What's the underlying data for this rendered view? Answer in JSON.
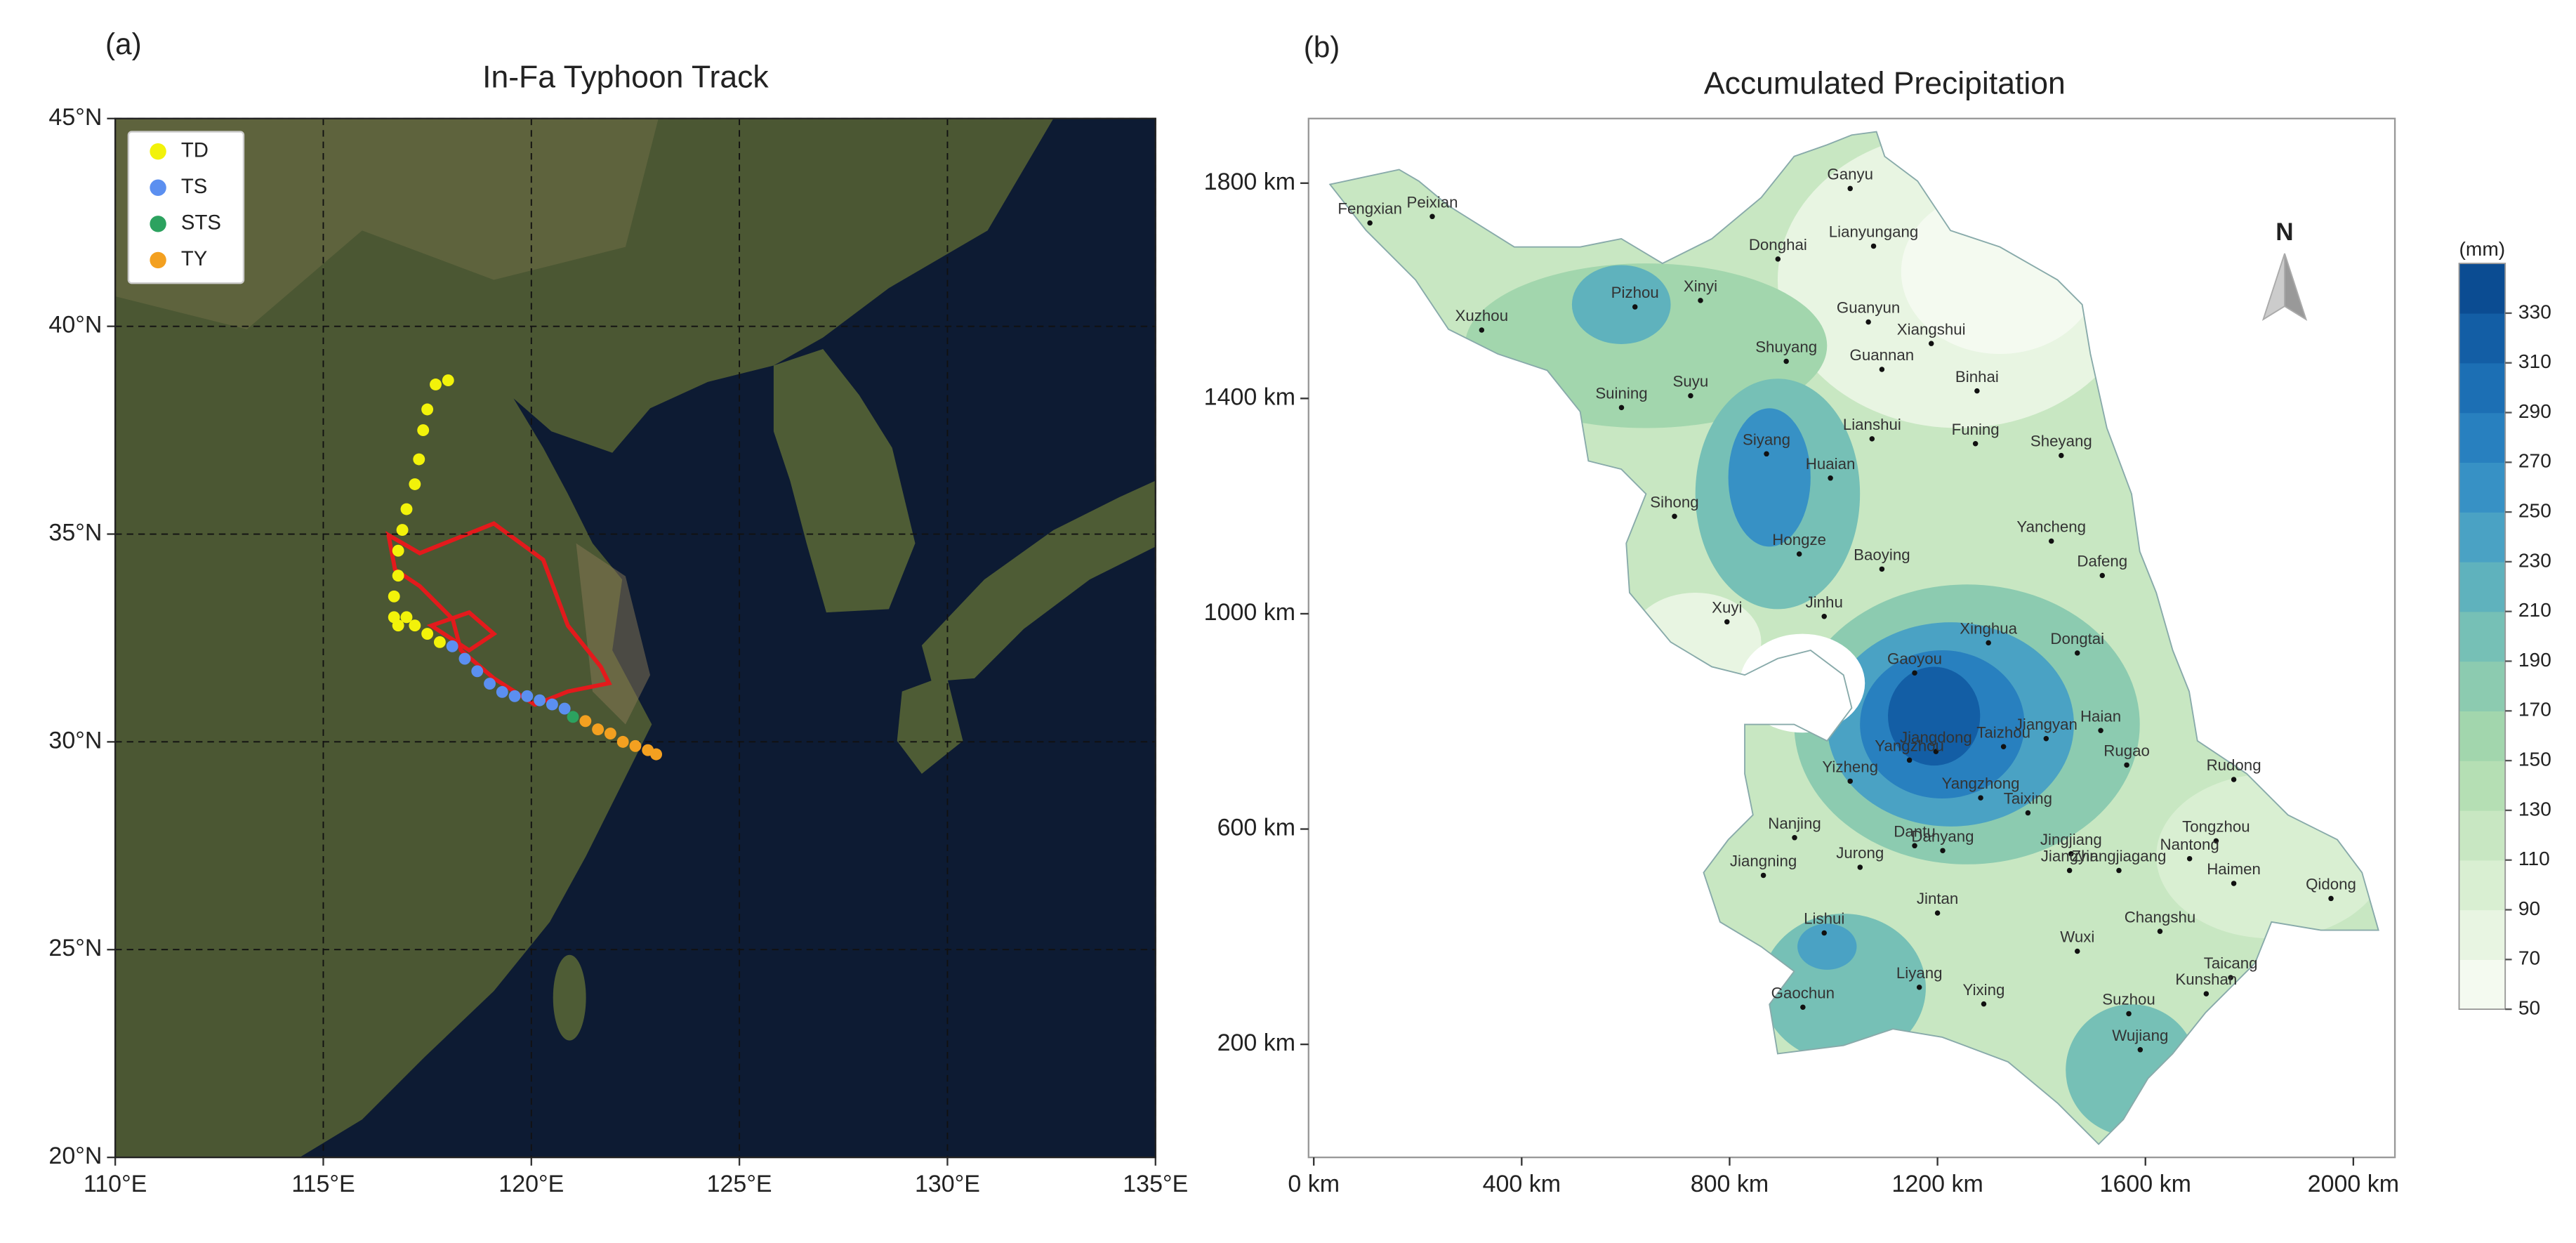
{
  "chart_data": [
    {
      "type": "scatter",
      "panel_label": "(a)",
      "title": "In-Fa Typhoon Track",
      "xlim": [
        110,
        135
      ],
      "ylim": [
        20,
        45
      ],
      "xticks": [
        {
          "value": 110,
          "label": "110°E"
        },
        {
          "value": 115,
          "label": "115°E"
        },
        {
          "value": 120,
          "label": "120°E"
        },
        {
          "value": 125,
          "label": "125°E"
        },
        {
          "value": 130,
          "label": "130°E"
        },
        {
          "value": 135,
          "label": "135°E"
        }
      ],
      "yticks": [
        {
          "value": 20,
          "label": "20°N"
        },
        {
          "value": 25,
          "label": "25°N"
        },
        {
          "value": 30,
          "label": "30°N"
        },
        {
          "value": 35,
          "label": "35°N"
        },
        {
          "value": 40,
          "label": "40°N"
        },
        {
          "value": 45,
          "label": "45°N"
        }
      ],
      "grid": true,
      "legend": "upper left",
      "series": [
        {
          "name": "TD",
          "color": "#f2f20a",
          "x": [
            118.0,
            117.7,
            117.5,
            117.4,
            117.3,
            117.2,
            117.0,
            116.9,
            116.8,
            116.8,
            116.7,
            116.7,
            116.8,
            117.0,
            117.2,
            117.5,
            117.8
          ],
          "y": [
            38.7,
            38.6,
            38.0,
            37.5,
            36.8,
            36.2,
            35.6,
            35.1,
            34.6,
            34.0,
            33.5,
            33.0,
            32.8,
            33.0,
            32.8,
            32.6,
            32.4
          ]
        },
        {
          "name": "TS",
          "color": "#5b8ff0",
          "x": [
            118.1,
            118.4,
            118.7,
            119.0,
            119.3,
            119.6,
            119.9,
            120.2,
            120.5,
            120.8
          ],
          "y": [
            32.3,
            32.0,
            31.7,
            31.4,
            31.2,
            31.1,
            31.1,
            31.0,
            30.9,
            30.8
          ]
        },
        {
          "name": "STS",
          "color": "#2ca25f",
          "x": [
            121.0
          ],
          "y": [
            30.6
          ]
        },
        {
          "name": "TY",
          "color": "#f3a020",
          "x": [
            121.3,
            121.6,
            121.9,
            122.2,
            122.5,
            122.8,
            123.0
          ],
          "y": [
            30.5,
            30.3,
            30.2,
            30.0,
            29.9,
            29.8,
            29.7
          ]
        }
      ]
    },
    {
      "type": "map",
      "panel_label": "(b)",
      "title": "Accumulated Precipitation",
      "xlim": [
        -10,
        2080
      ],
      "ylim": [
        -10,
        1920
      ],
      "xticks": [
        {
          "value": 0,
          "label": "0 km"
        },
        {
          "value": 400,
          "label": "400 km"
        },
        {
          "value": 800,
          "label": "800 km"
        },
        {
          "value": 1200,
          "label": "1200 km"
        },
        {
          "value": 1600,
          "label": "1600 km"
        },
        {
          "value": 2000,
          "label": "2000 km"
        }
      ],
      "yticks": [
        {
          "value": 200,
          "label": "200 km"
        },
        {
          "value": 600,
          "label": "600 km"
        },
        {
          "value": 1000,
          "label": "1000 km"
        },
        {
          "value": 1400,
          "label": "1400 km"
        },
        {
          "value": 1800,
          "label": "1800 km"
        }
      ],
      "north_label": "N",
      "cities": [
        {
          "name": "Ganyu",
          "x": 1032,
          "y": 1790
        },
        {
          "name": "Fengxian",
          "x": 108,
          "y": 1726
        },
        {
          "name": "Peixian",
          "x": 228,
          "y": 1738
        },
        {
          "name": "Lianyungang",
          "x": 1077,
          "y": 1683
        },
        {
          "name": "Donghai",
          "x": 893,
          "y": 1659
        },
        {
          "name": "Xinyi",
          "x": 744,
          "y": 1582
        },
        {
          "name": "Pizhou",
          "x": 618,
          "y": 1570
        },
        {
          "name": "Xuzhou",
          "x": 323,
          "y": 1527
        },
        {
          "name": "Guanyun",
          "x": 1067,
          "y": 1542
        },
        {
          "name": "Xiangshui",
          "x": 1188,
          "y": 1502
        },
        {
          "name": "Shuyang",
          "x": 909,
          "y": 1469
        },
        {
          "name": "Guannan",
          "x": 1093,
          "y": 1454
        },
        {
          "name": "Binhai",
          "x": 1276,
          "y": 1414
        },
        {
          "name": "Suining",
          "x": 592,
          "y": 1383
        },
        {
          "name": "Suyu",
          "x": 725,
          "y": 1405
        },
        {
          "name": "Lianshui",
          "x": 1074,
          "y": 1325
        },
        {
          "name": "Funing",
          "x": 1273,
          "y": 1316
        },
        {
          "name": "Sheyang",
          "x": 1438,
          "y": 1294
        },
        {
          "name": "Siyang",
          "x": 871,
          "y": 1297
        },
        {
          "name": "Huaian",
          "x": 994,
          "y": 1252
        },
        {
          "name": "Sihong",
          "x": 694,
          "y": 1181
        },
        {
          "name": "Yancheng",
          "x": 1419,
          "y": 1135
        },
        {
          "name": "Hongze",
          "x": 934,
          "y": 1111
        },
        {
          "name": "Baoying",
          "x": 1093,
          "y": 1083
        },
        {
          "name": "Dafeng",
          "x": 1517,
          "y": 1071
        },
        {
          "name": "Xuyi",
          "x": 795,
          "y": 985
        },
        {
          "name": "Jinhu",
          "x": 982,
          "y": 995
        },
        {
          "name": "Xinghua",
          "x": 1298,
          "y": 946
        },
        {
          "name": "Dongtai",
          "x": 1469,
          "y": 927
        },
        {
          "name": "Gaoyou",
          "x": 1156,
          "y": 890
        },
        {
          "name": "Haian",
          "x": 1514,
          "y": 783
        },
        {
          "name": "Jiangyan",
          "x": 1409,
          "y": 768
        },
        {
          "name": "Taizhou",
          "x": 1327,
          "y": 753
        },
        {
          "name": "Jiangdong",
          "x": 1197,
          "y": 744
        },
        {
          "name": "Yangzhou",
          "x": 1146,
          "y": 728
        },
        {
          "name": "Rugao",
          "x": 1564,
          "y": 719
        },
        {
          "name": "Rudong",
          "x": 1770,
          "y": 692
        },
        {
          "name": "Yizheng",
          "x": 1032,
          "y": 689
        },
        {
          "name": "Yangzhong",
          "x": 1283,
          "y": 658
        },
        {
          "name": "Taixing",
          "x": 1374,
          "y": 630
        },
        {
          "name": "Nanjing",
          "x": 925,
          "y": 584
        },
        {
          "name": "Tongzhou",
          "x": 1736,
          "y": 578
        },
        {
          "name": "Nantong",
          "x": 1685,
          "y": 545
        },
        {
          "name": "Dantu",
          "x": 1156,
          "y": 569
        },
        {
          "name": "Danyang",
          "x": 1210,
          "y": 560
        },
        {
          "name": "Jingjiang",
          "x": 1457,
          "y": 554
        },
        {
          "name": "Jiangyin",
          "x": 1454,
          "y": 523
        },
        {
          "name": "Zhangjiagang",
          "x": 1549,
          "y": 523
        },
        {
          "name": "Jiangning",
          "x": 865,
          "y": 514
        },
        {
          "name": "Jurong",
          "x": 1051,
          "y": 529
        },
        {
          "name": "Haimen",
          "x": 1770,
          "y": 499
        },
        {
          "name": "Qidong",
          "x": 1957,
          "y": 471
        },
        {
          "name": "Jintan",
          "x": 1200,
          "y": 444
        },
        {
          "name": "Changshu",
          "x": 1628,
          "y": 410
        },
        {
          "name": "Lishui",
          "x": 982,
          "y": 407
        },
        {
          "name": "Wuxi",
          "x": 1469,
          "y": 373
        },
        {
          "name": "Taicang",
          "x": 1764,
          "y": 324
        },
        {
          "name": "Kunshan",
          "x": 1717,
          "y": 294
        },
        {
          "name": "Liyang",
          "x": 1165,
          "y": 306
        },
        {
          "name": "Yixing",
          "x": 1289,
          "y": 275
        },
        {
          "name": "Suzhou",
          "x": 1568,
          "y": 257
        },
        {
          "name": "Gaochun",
          "x": 941,
          "y": 269
        },
        {
          "name": "Wujiang",
          "x": 1590,
          "y": 190
        }
      ],
      "colorbar": {
        "label": "(mm)",
        "lim": [
          50,
          350
        ],
        "ticks": [
          50,
          70,
          90,
          110,
          130,
          150,
          170,
          190,
          210,
          230,
          250,
          270,
          290,
          310,
          330
        ],
        "colors": [
          "#f4faf0",
          "#e8f5e2",
          "#d9efd2",
          "#c8e7c2",
          "#b5dfb4",
          "#a2d6ad",
          "#8ccbb0",
          "#76c0b6",
          "#5fb2bd",
          "#4aa2c4",
          "#3791c5",
          "#2880bf",
          "#1c6fb4",
          "#135ea5",
          "#0b4c92"
        ]
      }
    }
  ]
}
